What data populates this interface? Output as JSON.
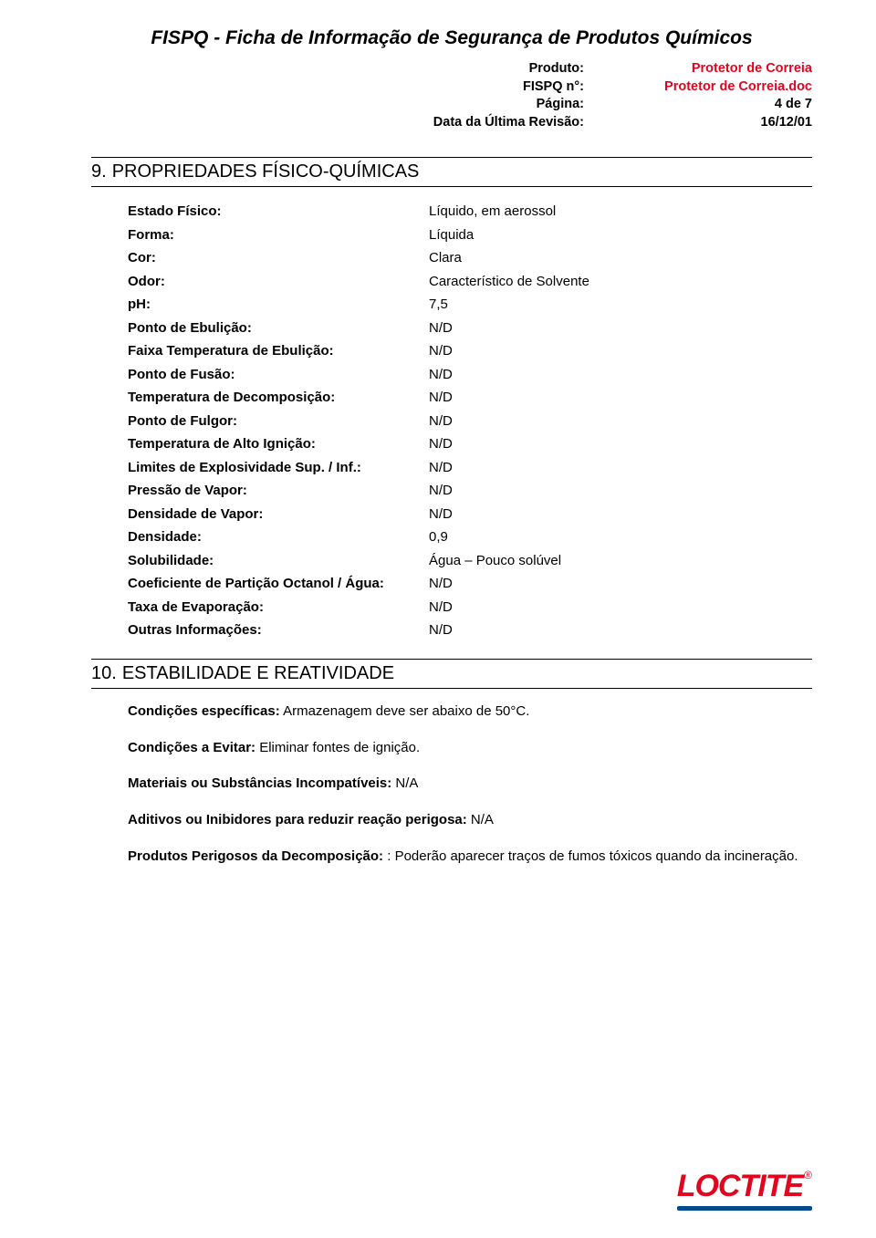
{
  "doc_title": "FISPQ  -  Ficha de Informação de Segurança de Produtos Químicos",
  "header": {
    "rows": [
      {
        "label": "Produto:",
        "value": "Protetor de Correia",
        "color": "#e1051e"
      },
      {
        "label": "FISPQ n°:",
        "value": "Protetor de Correia.doc",
        "color": "#e1051e"
      },
      {
        "label": "Página:",
        "value": "4 de 7",
        "color": "#000000"
      },
      {
        "label": "Data da Última Revisão:",
        "value": "16/12/01",
        "color": "#000000"
      }
    ]
  },
  "section9": {
    "num": "9.",
    "title": "PROPRIEDADES FÍSICO-QUÍMICAS",
    "rows": [
      {
        "label": "Estado Físico:",
        "value": "Líquido, em aerossol"
      },
      {
        "label": "Forma:",
        "value": "Líquida"
      },
      {
        "label": "Cor:",
        "value": "Clara"
      },
      {
        "label": "Odor:",
        "value": "Característico de Solvente"
      },
      {
        "label": "pH:",
        "value": "7,5"
      },
      {
        "label": "Ponto de Ebulição:",
        "value": "N/D"
      },
      {
        "label": "Faixa Temperatura de Ebulição:",
        "value": "N/D"
      },
      {
        "label": "Ponto de Fusão:",
        "value": "N/D"
      },
      {
        "label": "Temperatura de Decomposição:",
        "value": "N/D"
      },
      {
        "label": "Ponto de Fulgor:",
        "value": "N/D"
      },
      {
        "label": "Temperatura de Alto Ignição:",
        "value": "N/D"
      },
      {
        "label": "Limites de Explosividade Sup. / Inf.:",
        "value": "N/D"
      },
      {
        "label": "Pressão de Vapor:",
        "value": "N/D"
      },
      {
        "label": "Densidade de Vapor:",
        "value": "N/D"
      },
      {
        "label": "Densidade:",
        "value": "0,9"
      },
      {
        "label": "Solubilidade:",
        "value": "Água – Pouco solúvel"
      },
      {
        "label": "Coeficiente de Partição Octanol / Água:",
        "value": "N/D"
      },
      {
        "label": "Taxa de Evaporação:",
        "value": "N/D"
      },
      {
        "label": "Outras Informações:",
        "value": "N/D"
      }
    ]
  },
  "section10": {
    "num": "10.",
    "title": "ESTABILIDADE E REATIVIDADE",
    "paras": [
      {
        "label": "Condições específicas:",
        "text": " Armazenagem deve ser abaixo de 50°C."
      },
      {
        "label": "Condições a Evitar:",
        "text": " Eliminar fontes de ignição."
      },
      {
        "label": "Materiais ou Substâncias Incompatíveis:",
        "text": " N/A"
      },
      {
        "label": "Aditivos ou Inibidores para reduzir reação perigosa:",
        "text": " N/A"
      },
      {
        "label": "Produtos Perigosos da Decomposição: ",
        "text": ": Poderão aparecer traços de fumos tóxicos quando da incineração."
      }
    ]
  },
  "logo": {
    "text": "LOCTITE",
    "reg": "®",
    "text_color": "#e1051e",
    "bar_color": "#004a8e"
  }
}
